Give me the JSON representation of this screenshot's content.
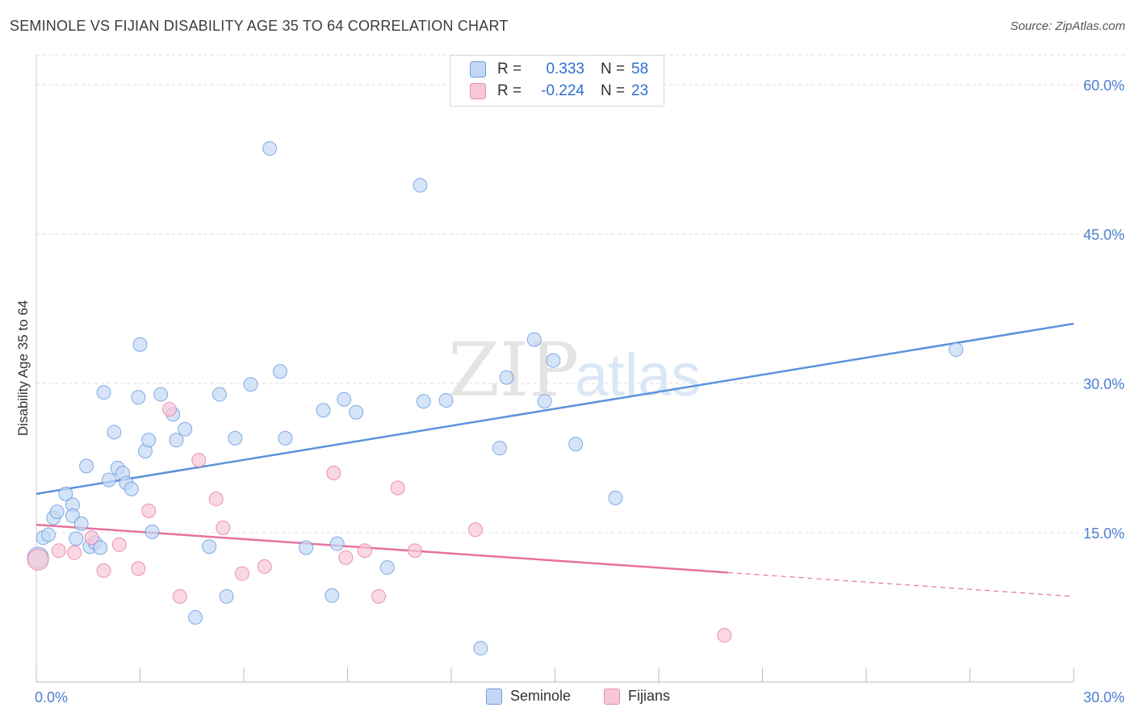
{
  "header": {
    "title": "SEMINOLE VS FIJIAN DISABILITY AGE 35 TO 64 CORRELATION CHART",
    "source": "Source: ZipAtlas.com"
  },
  "watermark": {
    "part1": "ZIP",
    "part2": "atlas"
  },
  "legend": {
    "rows": [
      {
        "r_label": "R =",
        "r_value": "0.333",
        "n_label": "N =",
        "n_value": "58",
        "color": "#aecbf0"
      },
      {
        "r_label": "R =",
        "r_value": "-0.224",
        "n_label": "N =",
        "n_value": "23",
        "color": "#f7bfd1"
      }
    ]
  },
  "bottom_legend": {
    "series1": "Seminole",
    "series2": "Fijians"
  },
  "chart_data": {
    "type": "scatter",
    "title": "SEMINOLE VS FIJIAN DISABILITY AGE 35 TO 64 CORRELATION CHART",
    "xlabel": "",
    "ylabel": "Disability Age 35 to 64",
    "xlim": [
      0,
      30
    ],
    "ylim": [
      0,
      63
    ],
    "x_tick_labels": [
      "0.0%",
      "30.0%"
    ],
    "y_ticks": [
      15,
      30,
      45,
      60
    ],
    "y_tick_labels": [
      "15.0%",
      "30.0%",
      "45.0%",
      "60.0%"
    ],
    "grid": true,
    "series": [
      {
        "name": "Seminole",
        "color": "#5b93dc",
        "fill": "#c3d8f3",
        "trend": {
          "x0": 0,
          "y0": 18.9,
          "x1": 30,
          "y1": 36.0,
          "dash_from": null
        },
        "points": [
          [
            0.05,
            12.5
          ],
          [
            0.2,
            14.5
          ],
          [
            0.35,
            14.8
          ],
          [
            0.5,
            16.5
          ],
          [
            0.6,
            17.1
          ],
          [
            0.85,
            18.9
          ],
          [
            1.05,
            17.8
          ],
          [
            1.05,
            16.7
          ],
          [
            1.15,
            14.4
          ],
          [
            1.3,
            15.9
          ],
          [
            1.45,
            21.7
          ],
          [
            1.55,
            13.6
          ],
          [
            1.7,
            14.0
          ],
          [
            1.85,
            13.5
          ],
          [
            1.95,
            29.1
          ],
          [
            2.1,
            20.3
          ],
          [
            2.25,
            25.1
          ],
          [
            2.35,
            21.5
          ],
          [
            2.5,
            21.0
          ],
          [
            2.6,
            20.0
          ],
          [
            2.75,
            19.4
          ],
          [
            2.95,
            28.6
          ],
          [
            3.0,
            33.9
          ],
          [
            3.15,
            23.2
          ],
          [
            3.25,
            24.3
          ],
          [
            3.35,
            15.1
          ],
          [
            3.6,
            28.9
          ],
          [
            3.95,
            26.9
          ],
          [
            4.05,
            24.3
          ],
          [
            4.3,
            25.4
          ],
          [
            4.6,
            6.5
          ],
          [
            5.0,
            13.6
          ],
          [
            5.3,
            28.9
          ],
          [
            5.5,
            8.6
          ],
          [
            5.75,
            24.5
          ],
          [
            6.2,
            29.9
          ],
          [
            6.75,
            53.6
          ],
          [
            7.05,
            31.2
          ],
          [
            7.2,
            24.5
          ],
          [
            7.8,
            13.5
          ],
          [
            8.3,
            27.3
          ],
          [
            8.55,
            8.7
          ],
          [
            8.7,
            13.9
          ],
          [
            8.9,
            28.4
          ],
          [
            9.25,
            27.1
          ],
          [
            10.15,
            11.5
          ],
          [
            11.1,
            49.9
          ],
          [
            11.2,
            28.2
          ],
          [
            11.85,
            28.3
          ],
          [
            12.85,
            3.4
          ],
          [
            13.4,
            23.5
          ],
          [
            13.6,
            30.6
          ],
          [
            14.4,
            34.4
          ],
          [
            14.7,
            28.2
          ],
          [
            14.95,
            32.3
          ],
          [
            15.6,
            23.9
          ],
          [
            16.75,
            18.5
          ],
          [
            26.6,
            33.4
          ]
        ]
      },
      {
        "name": "Fijians",
        "color": "#e8729b",
        "fill": "#f8c7d7",
        "trend": {
          "x0": 0,
          "y0": 15.8,
          "x1": 30,
          "y1": 8.6,
          "dash_from": 20
        },
        "points": [
          [
            0.05,
            12.3
          ],
          [
            0.65,
            13.2
          ],
          [
            1.1,
            13.0
          ],
          [
            1.6,
            14.5
          ],
          [
            1.95,
            11.2
          ],
          [
            2.4,
            13.8
          ],
          [
            2.95,
            11.4
          ],
          [
            3.25,
            17.2
          ],
          [
            3.85,
            27.4
          ],
          [
            4.15,
            8.6
          ],
          [
            4.7,
            22.3
          ],
          [
            5.2,
            18.4
          ],
          [
            5.4,
            15.5
          ],
          [
            5.95,
            10.9
          ],
          [
            6.6,
            11.6
          ],
          [
            8.6,
            21.0
          ],
          [
            8.95,
            12.5
          ],
          [
            9.5,
            13.2
          ],
          [
            9.9,
            8.6
          ],
          [
            10.45,
            19.5
          ],
          [
            10.95,
            13.2
          ],
          [
            12.7,
            15.3
          ],
          [
            19.9,
            4.7
          ]
        ]
      }
    ]
  }
}
